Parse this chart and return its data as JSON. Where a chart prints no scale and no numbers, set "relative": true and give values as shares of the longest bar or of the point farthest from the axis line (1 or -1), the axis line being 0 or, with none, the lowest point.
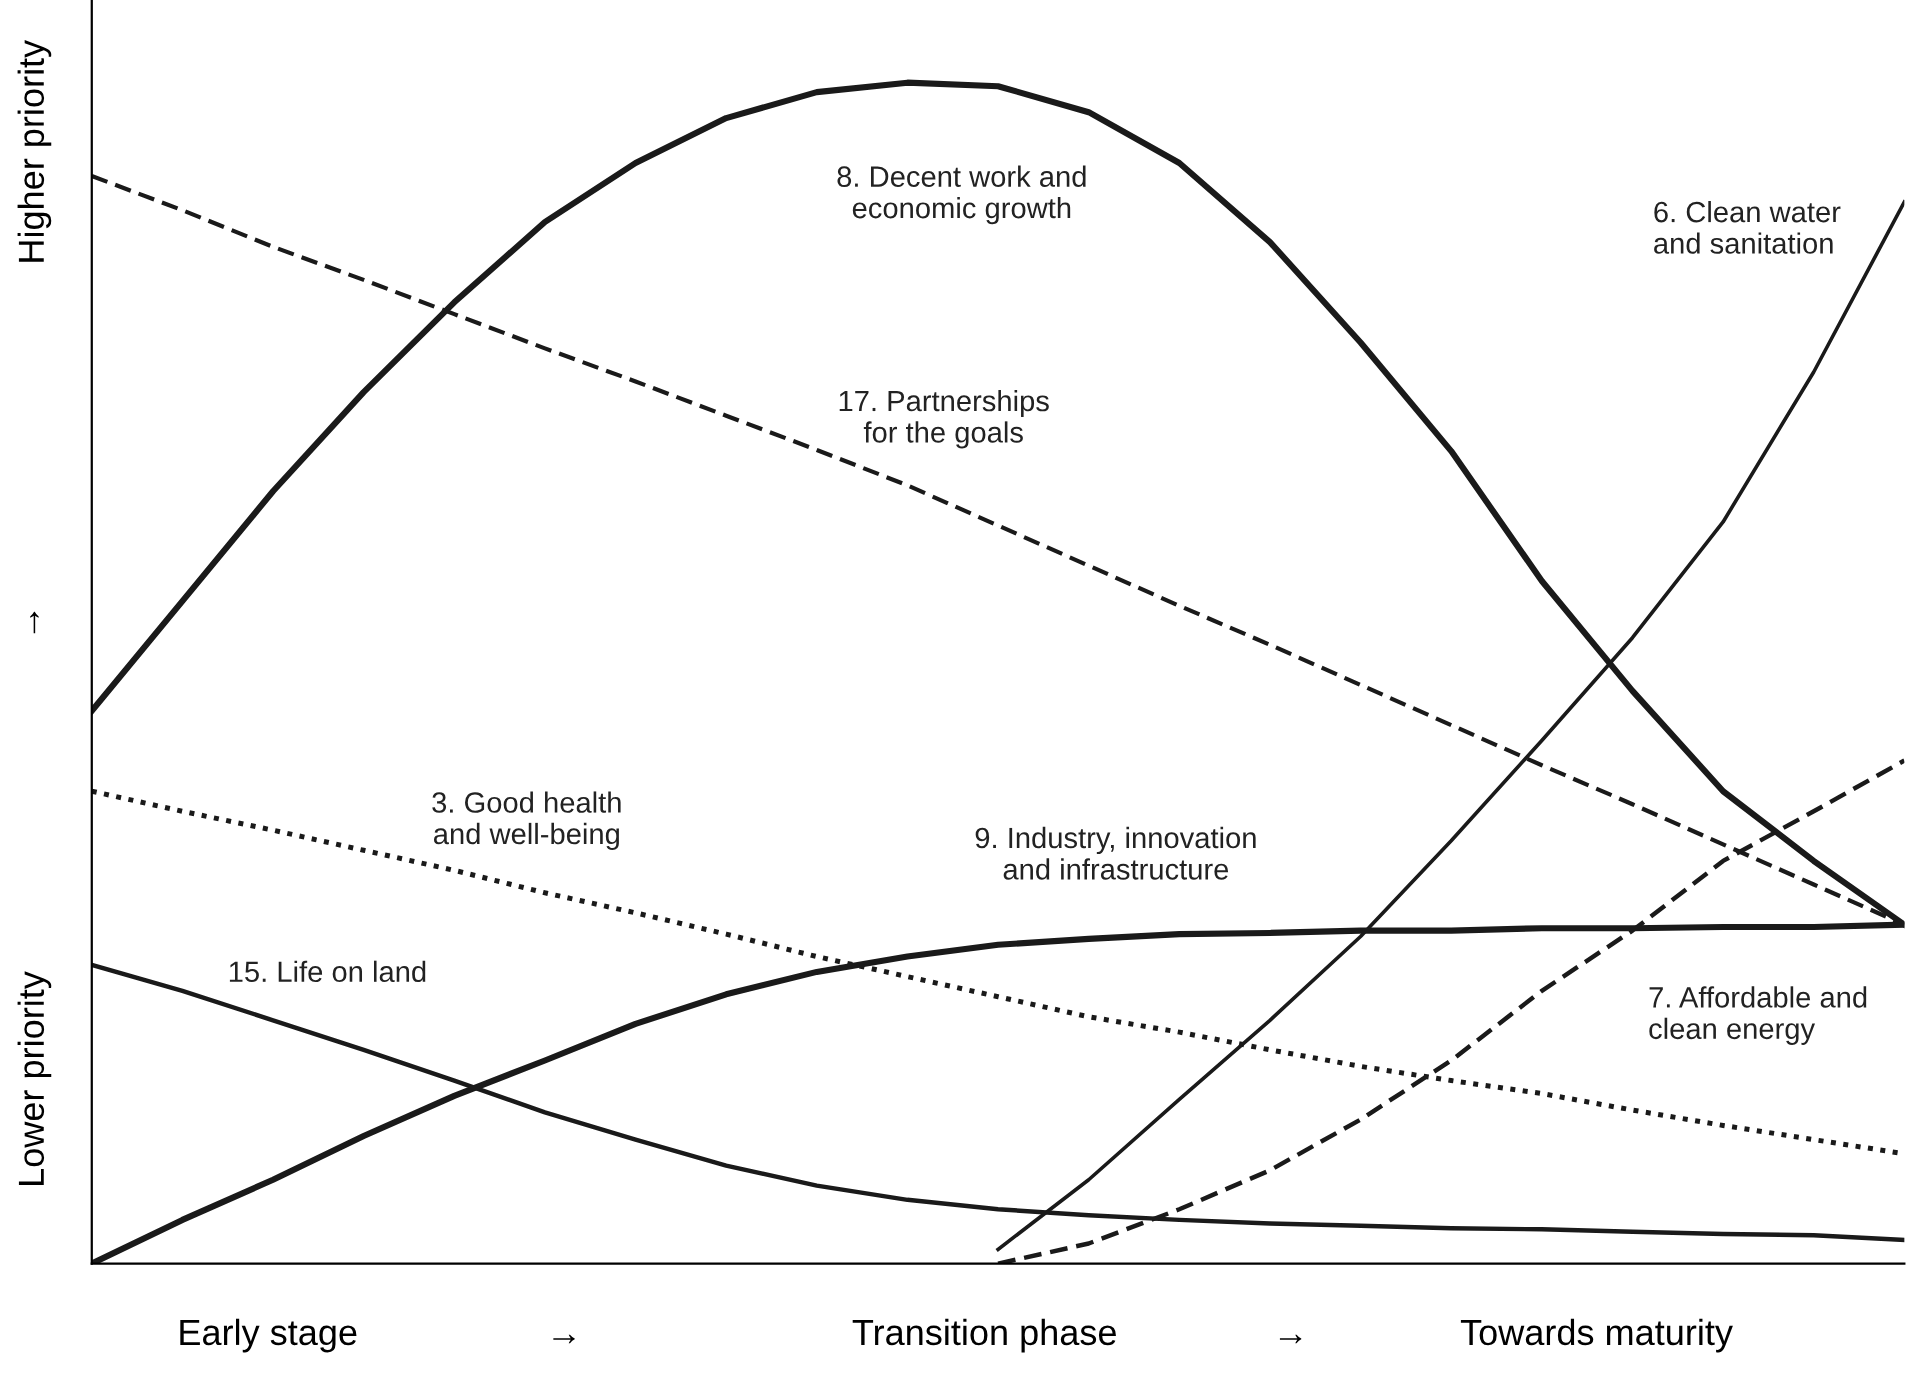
{
  "chart_data": {
    "type": "line",
    "relative": true,
    "legend": false,
    "categories": [
      null,
      null,
      null,
      null,
      null,
      null,
      null,
      null,
      null,
      null,
      null,
      null,
      null,
      null,
      null,
      null,
      null,
      null,
      null,
      null,
      null
    ],
    "annotations": [
      "Early stage",
      "→",
      "Transition phase",
      "→",
      "Towards maturity",
      "Lower priority",
      "↑",
      "Higher priority"
    ],
    "series": [
      {
        "name": "8. Decent work and\neconomic growth",
        "color": "#1a1a1a",
        "line_style": "solid",
        "values": [
          0.468,
          0.561,
          0.654,
          0.738,
          0.814,
          0.882,
          0.932,
          0.97,
          0.992,
          1,
          0.997,
          0.975,
          0.932,
          0.865,
          0.78,
          0.688,
          0.578,
          0.485,
          0.4,
          0.341,
          0.287
        ]
      },
      {
        "name": "17. Partnerships\nfor the goals",
        "color": "#1a1a1a",
        "line_style": "dashed",
        "values": [
          0.921,
          0.892,
          0.861,
          0.833,
          0.804,
          0.775,
          0.747,
          0.718,
          0.689,
          0.659,
          0.625,
          0.591,
          0.557,
          0.524,
          0.49,
          0.456,
          0.422,
          0.389,
          0.355,
          0.321,
          0.287
        ]
      },
      {
        "name": "6. Clean water\nand sanitation",
        "color": "#1a1a1a",
        "line_style": "solid",
        "values": [
          null,
          null,
          null,
          null,
          null,
          null,
          null,
          null,
          null,
          null,
          0.012,
          0.071,
          0.139,
          0.206,
          0.277,
          0.358,
          0.443,
          0.53,
          0.628,
          0.755,
          0.899
        ]
      },
      {
        "name": "7. Affordable and\nclean energy",
        "color": "#1a1a1a",
        "line_style": "dashed",
        "values": [
          null,
          null,
          null,
          null,
          null,
          null,
          null,
          null,
          null,
          null,
          0,
          0.017,
          0.046,
          0.079,
          0.122,
          0.172,
          0.231,
          0.282,
          0.341,
          0.383,
          0.426
        ]
      },
      {
        "name": "9. Industry, innovation\nand infrastructure",
        "color": "#1a1a1a",
        "line_style": "solid",
        "values": [
          0,
          0.037,
          0.071,
          0.108,
          0.142,
          0.172,
          0.203,
          0.228,
          0.247,
          0.26,
          0.27,
          0.275,
          0.279,
          0.28,
          0.282,
          0.282,
          0.284,
          0.284,
          0.285,
          0.285,
          0.287
        ]
      },
      {
        "name": "3. Good health\nand well-being",
        "color": "#1a1a1a",
        "line_style": "dotted",
        "values": [
          0.4,
          0.383,
          0.367,
          0.35,
          0.333,
          0.314,
          0.297,
          0.279,
          0.26,
          0.243,
          0.226,
          0.209,
          0.196,
          0.181,
          0.167,
          0.155,
          0.144,
          0.13,
          0.117,
          0.105,
          0.093
        ]
      },
      {
        "name": "15. Life on land",
        "color": "#1a1a1a",
        "line_style": "solid",
        "values": [
          0.253,
          0.231,
          0.206,
          0.181,
          0.155,
          0.128,
          0.105,
          0.083,
          0.066,
          0.054,
          0.046,
          0.041,
          0.037,
          0.034,
          0.032,
          0.03,
          0.029,
          0.027,
          0.025,
          0.024,
          0.02
        ]
      }
    ]
  }
}
